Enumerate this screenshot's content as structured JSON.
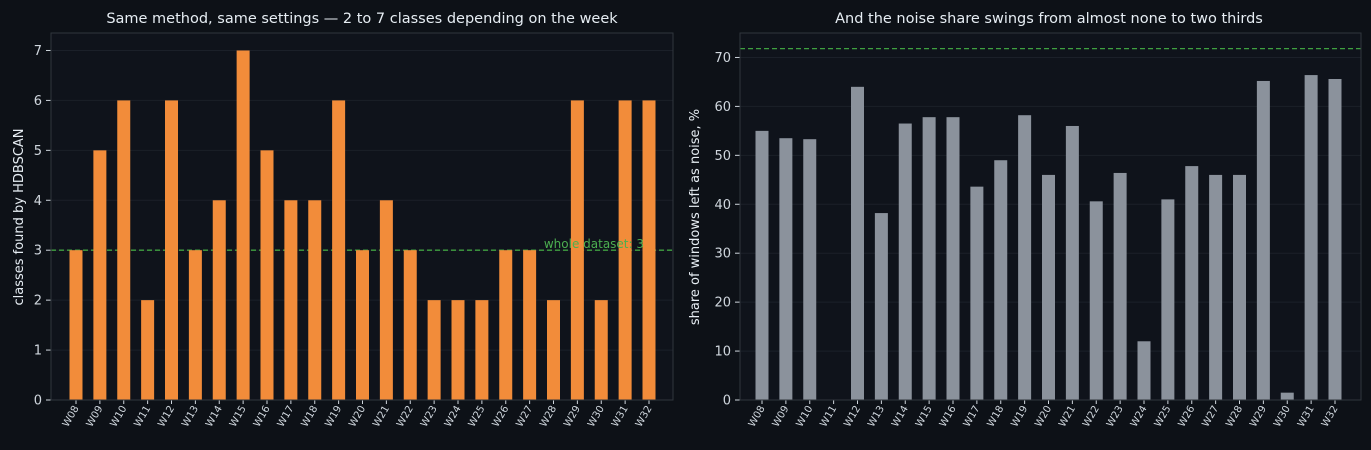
{
  "colors": {
    "page_bg": "#0d1117",
    "plot_bg": "#0f131b",
    "frame": "#30363d",
    "grid": "#1b2029",
    "text": "#e6edf3",
    "tick_text": "#d0d7de",
    "bar_left": "#f28c3a",
    "bar_right": "#8b929c",
    "reference": "#3fa040",
    "reference_text": "#4caf50"
  },
  "chart_data": [
    {
      "type": "bar",
      "title": "Same method, same settings — 2 to 7 classes depending on the week",
      "xlabel": "",
      "ylabel": "classes found by HDBSCAN",
      "categories": [
        "W08",
        "W09",
        "W10",
        "W11",
        "W12",
        "W13",
        "W14",
        "W15",
        "W16",
        "W17",
        "W18",
        "W19",
        "W20",
        "W21",
        "W22",
        "W23",
        "W24",
        "W25",
        "W26",
        "W27",
        "W28",
        "W29",
        "W30",
        "W31",
        "W32"
      ],
      "values": [
        3,
        5,
        6,
        2,
        6,
        3,
        4,
        7,
        5,
        4,
        4,
        6,
        3,
        4,
        3,
        2,
        2,
        2,
        3,
        3,
        2,
        6,
        2,
        6,
        6
      ],
      "ylim": [
        0,
        7.35
      ],
      "yticks": [
        0,
        1,
        2,
        3,
        4,
        5,
        6,
        7
      ],
      "grid": true,
      "reference_line": {
        "value": 3,
        "label": "whole dataset: 3",
        "style": "dashed"
      }
    },
    {
      "type": "bar",
      "title": "And the noise share swings from almost none to two thirds",
      "xlabel": "",
      "ylabel": "share of windows left as noise, %",
      "categories": [
        "W08",
        "W09",
        "W10",
        "W11",
        "W12",
        "W13",
        "W14",
        "W15",
        "W16",
        "W17",
        "W18",
        "W19",
        "W20",
        "W21",
        "W22",
        "W23",
        "W24",
        "W25",
        "W26",
        "W27",
        "W28",
        "W29",
        "W30",
        "W31",
        "W32"
      ],
      "values": [
        55,
        53.5,
        53.3,
        0,
        64,
        38.2,
        56.5,
        57.8,
        57.8,
        43.6,
        49,
        58.2,
        46,
        56,
        40.6,
        46.4,
        12,
        41,
        47.8,
        46,
        46,
        65.2,
        1.5,
        66.4,
        65.6
      ],
      "ylim": [
        0,
        75
      ],
      "yticks": [
        0,
        10,
        20,
        30,
        40,
        50,
        60,
        70
      ],
      "grid": true,
      "reference_line": {
        "value": 71.8,
        "label": "",
        "style": "dashed"
      }
    }
  ]
}
